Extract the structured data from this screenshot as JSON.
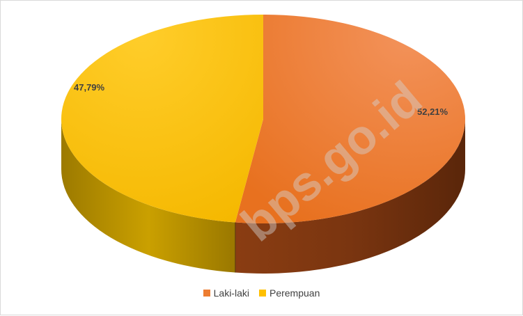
{
  "chart_data": {
    "type": "pie",
    "style": "3d",
    "categories": [
      "Laki-laki",
      "Perempuan"
    ],
    "values": [
      52.21,
      47.79
    ],
    "labels": [
      "52,21%",
      "47,79%"
    ],
    "colors": [
      "#ED7D31",
      "#FFC000"
    ],
    "legend_position": "bottom"
  },
  "watermark": "bps.go.id"
}
